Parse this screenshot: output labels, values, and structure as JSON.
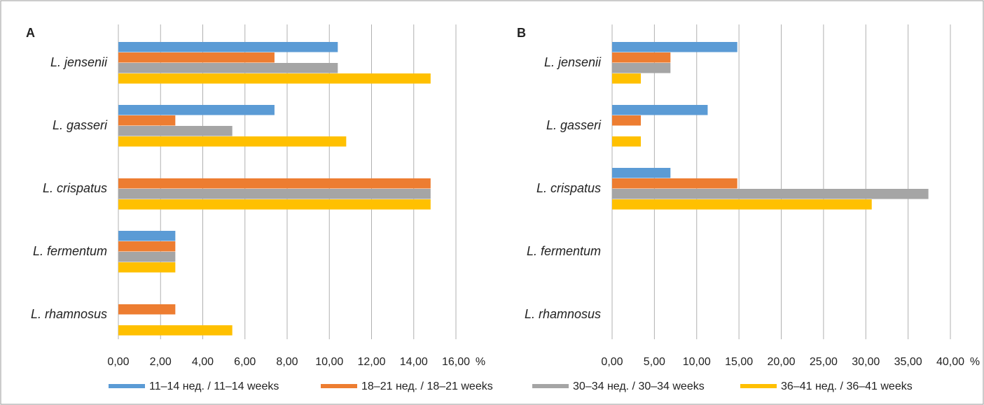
{
  "chart_data": [
    {
      "type": "bar",
      "title": "A",
      "x_label": "%",
      "categories": [
        "L. jensenii",
        "L. gasseri",
        "L. crispatus",
        "L. fermentum",
        "L. rhamnosus"
      ],
      "series": [
        {
          "name": "11–14 нед. / 11–14 weeks",
          "color": "#5b9bd5",
          "values": [
            10.4,
            7.4,
            0,
            2.7,
            0
          ]
        },
        {
          "name": "18–21 нед. / 18–21 weeks",
          "color": "#ed7d31",
          "values": [
            7.4,
            2.7,
            14.8,
            2.7,
            2.7
          ]
        },
        {
          "name": "30–34 нед. / 30–34 weeks",
          "color": "#a5a5a5",
          "values": [
            10.4,
            5.4,
            14.8,
            2.7,
            0
          ]
        },
        {
          "name": "36–41 нед. / 36–41 weeks",
          "color": "#ffc000",
          "values": [
            14.8,
            10.8,
            14.8,
            2.7,
            5.4
          ]
        }
      ],
      "xlim": [
        0,
        16
      ],
      "xticks": [
        {
          "value": 0,
          "label": "0,00"
        },
        {
          "value": 2,
          "label": "2,00"
        },
        {
          "value": 4,
          "label": "4,00"
        },
        {
          "value": 6,
          "label": "6,00"
        },
        {
          "value": 8,
          "label": "8,00"
        },
        {
          "value": 10,
          "label": "10,00"
        },
        {
          "value": 12,
          "label": "12,00"
        },
        {
          "value": 14,
          "label": "14,00"
        },
        {
          "value": 16,
          "label": "16,00"
        }
      ],
      "grid": true
    },
    {
      "type": "bar",
      "title": "B",
      "x_label": "%",
      "categories": [
        "L. jensenii",
        "L. gasseri",
        "L. crispatus",
        "L. fermentum",
        "L. rhamnosus"
      ],
      "series": [
        {
          "color": "#5b9bd5",
          "values": [
            14.8,
            11.3,
            6.9,
            0,
            0
          ]
        },
        {
          "color": "#ed7d31",
          "values": [
            6.9,
            3.4,
            14.8,
            0,
            0
          ]
        },
        {
          "color": "#a5a5a5",
          "values": [
            6.9,
            0,
            37.4,
            0,
            0
          ]
        },
        {
          "color": "#ffc000",
          "values": [
            3.4,
            3.4,
            30.7,
            0,
            0
          ]
        }
      ],
      "xlim": [
        0,
        40
      ],
      "xticks": [
        {
          "value": 0,
          "label": "0,00"
        },
        {
          "value": 5,
          "label": "5,00"
        },
        {
          "value": 10,
          "label": "10,00"
        },
        {
          "value": 15,
          "label": "15,00"
        },
        {
          "value": 20,
          "label": "20,00"
        },
        {
          "value": 25,
          "label": "25,00"
        },
        {
          "value": 30,
          "label": "30,00"
        },
        {
          "value": 35,
          "label": "35,00"
        },
        {
          "value": 40,
          "label": "40,00"
        }
      ],
      "grid": true
    }
  ]
}
